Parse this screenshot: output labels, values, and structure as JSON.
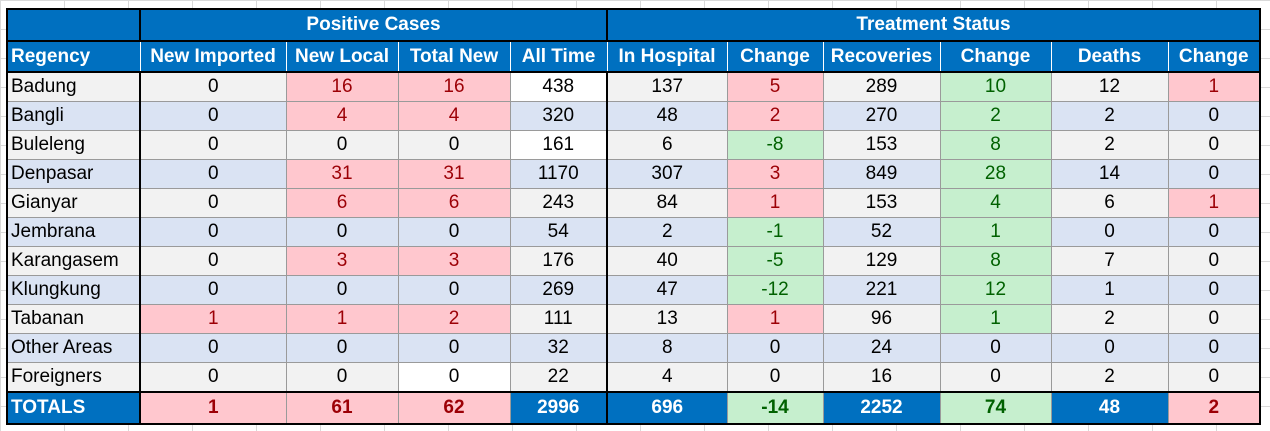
{
  "group_headers": {
    "positive_cases": "Positive Cases",
    "treatment_status": "Treatment Status"
  },
  "columns": [
    "Regency",
    "New Imported",
    "New Local",
    "Total New",
    "All Time",
    "In Hospital",
    "Change",
    "Recoveries",
    "Change",
    "Deaths",
    "Change"
  ],
  "rows": [
    [
      "Badung",
      "0",
      "16",
      "16",
      "438",
      "137",
      "5",
      "289",
      "10",
      "12",
      "1"
    ],
    [
      "Bangli",
      "0",
      "4",
      "4",
      "320",
      "48",
      "2",
      "270",
      "2",
      "2",
      "0"
    ],
    [
      "Buleleng",
      "0",
      "0",
      "0",
      "161",
      "6",
      "-8",
      "153",
      "8",
      "2",
      "0"
    ],
    [
      "Denpasar",
      "0",
      "31",
      "31",
      "1170",
      "307",
      "3",
      "849",
      "28",
      "14",
      "0"
    ],
    [
      "Gianyar",
      "0",
      "6",
      "6",
      "243",
      "84",
      "1",
      "153",
      "4",
      "6",
      "1"
    ],
    [
      "Jembrana",
      "0",
      "0",
      "0",
      "54",
      "2",
      "-1",
      "52",
      "1",
      "0",
      "0"
    ],
    [
      "Karangasem",
      "0",
      "3",
      "3",
      "176",
      "40",
      "-5",
      "129",
      "8",
      "7",
      "0"
    ],
    [
      "Klungkung",
      "0",
      "0",
      "0",
      "269",
      "47",
      "-12",
      "221",
      "12",
      "1",
      "0"
    ],
    [
      "Tabanan",
      "1",
      "1",
      "2",
      "111",
      "13",
      "1",
      "96",
      "1",
      "2",
      "0"
    ],
    [
      "Other Areas",
      "0",
      "0",
      "0",
      "32",
      "8",
      "0",
      "24",
      "0",
      "0",
      "0"
    ],
    [
      "Foreigners",
      "0",
      "0",
      "0",
      "22",
      "4",
      "0",
      "16",
      "0",
      "2",
      "0"
    ]
  ],
  "cell_styles": [
    [
      "",
      "",
      "pos",
      "pos",
      "white",
      "",
      "pos",
      "",
      "neg",
      "",
      "pos"
    ],
    [
      "",
      "",
      "pos",
      "pos",
      "",
      "",
      "pos",
      "",
      "neg",
      "",
      ""
    ],
    [
      "",
      "",
      "",
      "",
      "white",
      "",
      "neg",
      "",
      "neg",
      "",
      ""
    ],
    [
      "",
      "",
      "pos",
      "pos",
      "",
      "",
      "pos",
      "",
      "neg",
      "",
      ""
    ],
    [
      "",
      "",
      "pos",
      "pos",
      "",
      "",
      "pos",
      "",
      "neg",
      "",
      "pos"
    ],
    [
      "",
      "",
      "",
      "",
      "",
      "",
      "neg",
      "",
      "neg",
      "",
      ""
    ],
    [
      "",
      "",
      "pos",
      "pos",
      "",
      "",
      "neg",
      "",
      "neg",
      "",
      ""
    ],
    [
      "",
      "",
      "",
      "",
      "",
      "",
      "neg",
      "",
      "neg",
      "",
      ""
    ],
    [
      "",
      "pos",
      "pos",
      "pos",
      "",
      "",
      "pos",
      "",
      "neg",
      "",
      ""
    ],
    [
      "",
      "",
      "",
      "",
      "",
      "",
      "",
      "",
      "",
      "",
      ""
    ],
    [
      "",
      "",
      "",
      "white",
      "",
      "",
      "",
      "",
      "",
      "",
      ""
    ]
  ],
  "totals": [
    "TOTALS",
    "1",
    "61",
    "62",
    "2996",
    "696",
    "-14",
    "2252",
    "74",
    "48",
    "2"
  ],
  "totals_styles": [
    "blue",
    "pos",
    "pos",
    "pos",
    "blue",
    "blue",
    "neg",
    "blue",
    "neg",
    "blue",
    "pos"
  ],
  "colors": {
    "header_blue": "#0070c0",
    "positive_bg": "#ffc7ce",
    "positive_text": "#9c0006",
    "negative_bg": "#c6efce",
    "negative_text": "#006100",
    "row_even": "#f2f2f2",
    "row_odd": "#dae3f3"
  }
}
